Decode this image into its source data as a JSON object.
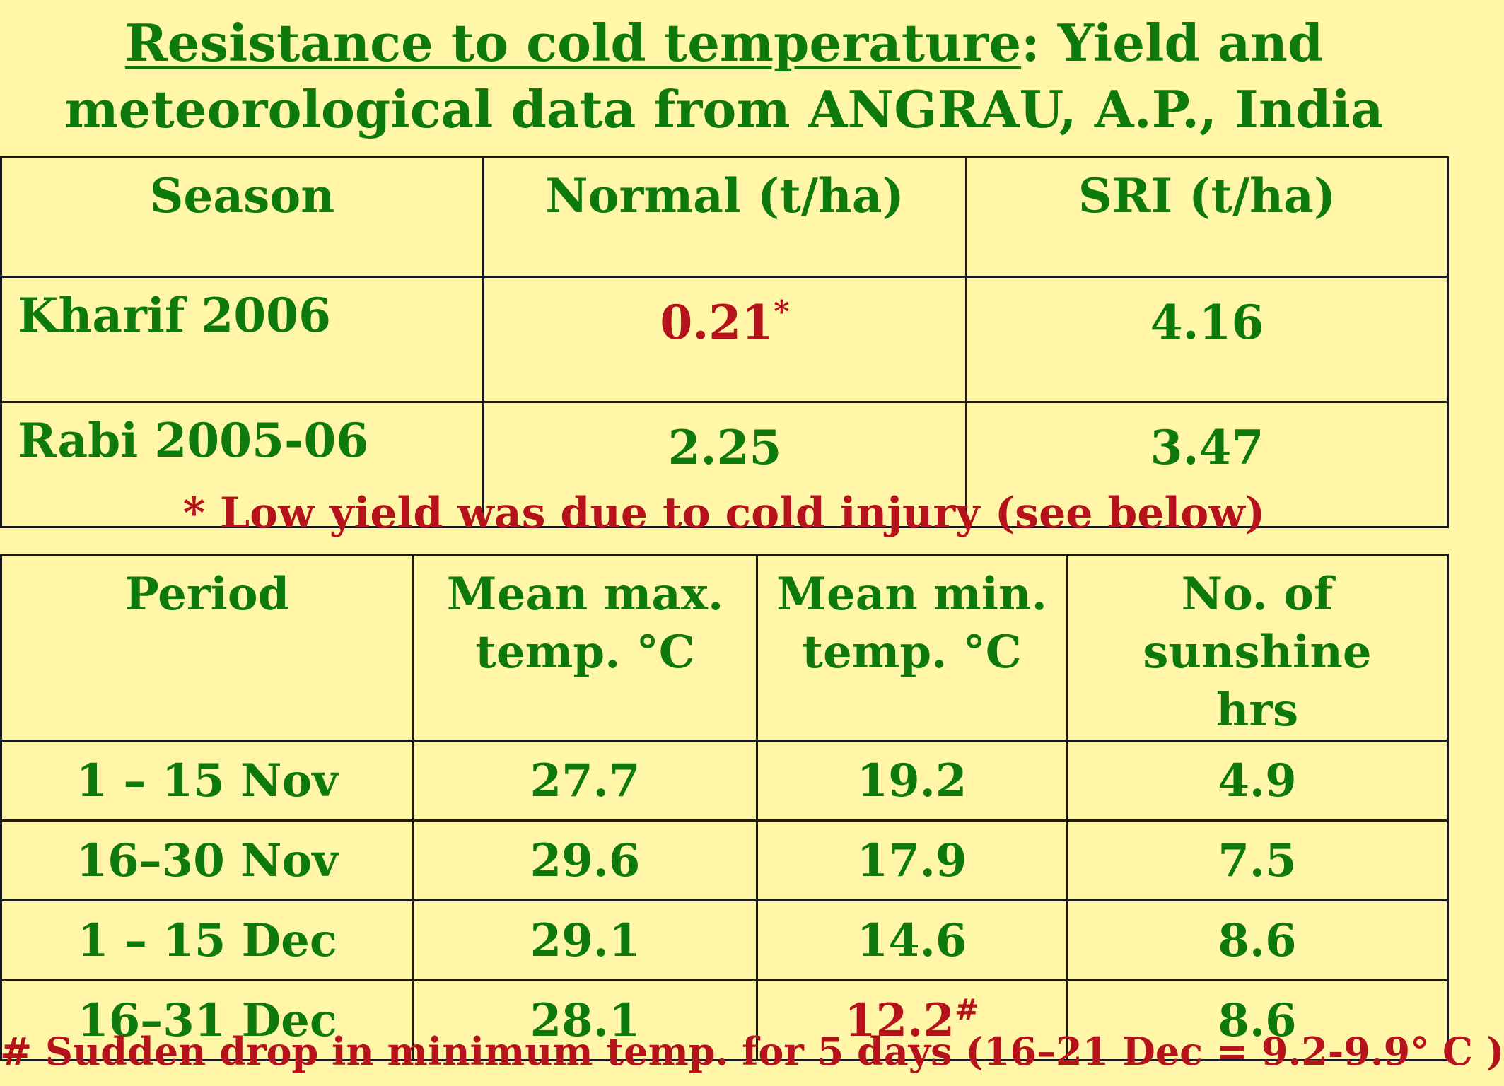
{
  "title": {
    "underlined": "Resistance  to  cold  temperature",
    "rest_line1": ":  Yield and",
    "line2": "meteorological data from ANGRAU, A.P., India"
  },
  "yield_table": {
    "headers": [
      "Season",
      "Normal (t/ha)",
      "SRI (t/ha)"
    ],
    "rows": [
      {
        "season": "Kharif 2006",
        "normal": "0.21",
        "normal_mark": "*",
        "sri": "4.16"
      },
      {
        "season": "Rabi 2005-06",
        "normal": "2.25",
        "normal_mark": "",
        "sri": "3.47"
      }
    ]
  },
  "note_cold": "* Low yield was due to cold injury (see below)",
  "met_table": {
    "headers": [
      "Period",
      "Mean max. temp. °C",
      "Mean min. temp. °C",
      "No. of sunshine hrs"
    ],
    "header_lines": [
      [
        "Period"
      ],
      [
        "Mean max.",
        "temp. °C"
      ],
      [
        "Mean min.",
        "temp. °C"
      ],
      [
        "No. of sunshine",
        "hrs"
      ]
    ],
    "rows": [
      {
        "period": "1 – 15 Nov",
        "max": "27.7",
        "min": "19.2",
        "min_mark": "",
        "sun": "4.9"
      },
      {
        "period": "16–30 Nov",
        "max": "29.6",
        "min": "17.9",
        "min_mark": "",
        "sun": "7.5"
      },
      {
        "period": "1 – 15 Dec",
        "max": "29.1",
        "min": "14.6",
        "min_mark": "",
        "sun": "8.6"
      },
      {
        "period": "16–31 Dec",
        "max": "28.1",
        "min": "12.2",
        "min_mark": "#",
        "sun": "8.6"
      }
    ]
  },
  "note_drop": "# Sudden drop in minimum temp. for 5 days (16–21 Dec = 9.2-9.9° C )",
  "colors": {
    "background": "#FFF6A8",
    "green_text": "#0E7A0E",
    "red_text": "#B5121B",
    "border": "#1a1a1a"
  }
}
